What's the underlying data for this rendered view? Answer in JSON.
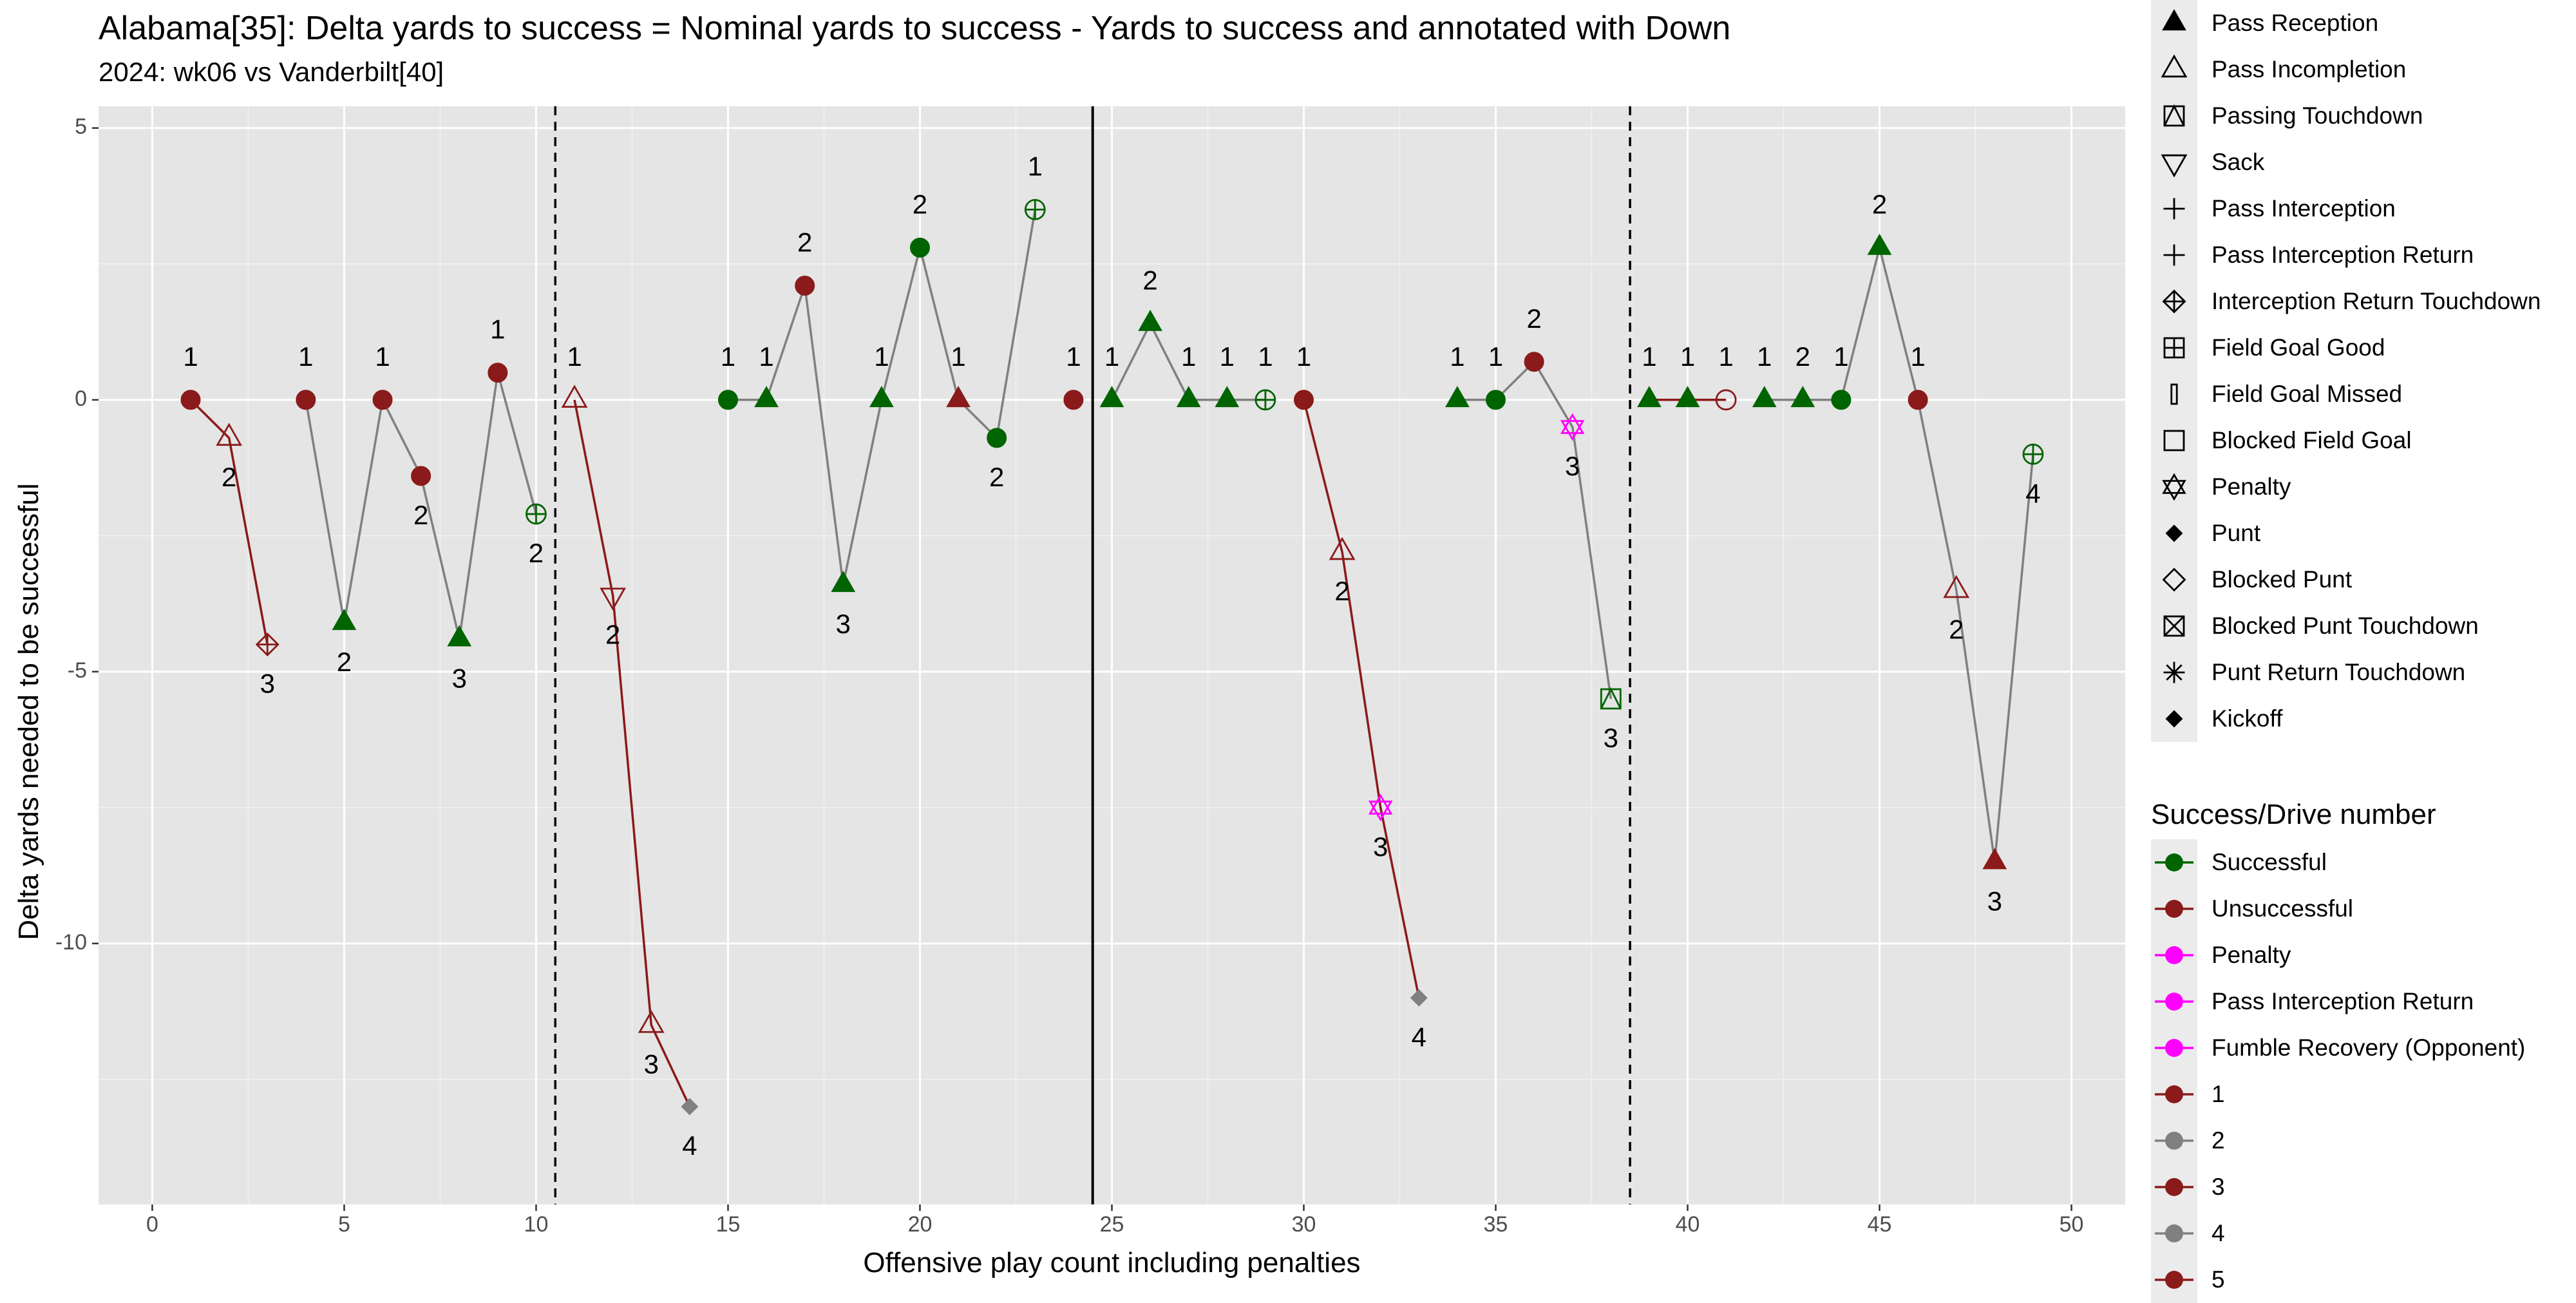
{
  "title": "Alabama[35]: Delta yards to success = Nominal yards to success - Yards to success and annotated with Down",
  "subtitle": "2024: wk06 vs Vanderbilt[40]",
  "legend_shape": {
    "items": [
      {
        "label": "Pass Reception",
        "shape": "filled-triangle"
      },
      {
        "label": "Pass Incompletion",
        "shape": "open-triangle"
      },
      {
        "label": "Passing Touchdown",
        "shape": "square-triangle"
      },
      {
        "label": "Sack",
        "shape": "down-triangle"
      },
      {
        "label": "Pass Interception",
        "shape": "plus"
      },
      {
        "label": "Pass Interception Return",
        "shape": "plus"
      },
      {
        "label": "Interception Return Touchdown",
        "shape": "diamond-plus"
      },
      {
        "label": "Field Goal Good",
        "shape": "square-plus"
      },
      {
        "label": "Field Goal Missed",
        "shape": "thin-rect"
      },
      {
        "label": "Blocked Field Goal",
        "shape": "open-square"
      },
      {
        "label": "Penalty",
        "shape": "star-of-david"
      },
      {
        "label": "Punt",
        "shape": "filled-diamond"
      },
      {
        "label": "Blocked Punt",
        "shape": "open-diamond"
      },
      {
        "label": "Blocked Punt Touchdown",
        "shape": "square-x"
      },
      {
        "label": "Punt Return Touchdown",
        "shape": "asterisk"
      },
      {
        "label": "Kickoff",
        "shape": "filled-diamond"
      }
    ]
  },
  "legend_color": {
    "title": "Success/Drive number",
    "items": [
      {
        "label": "Successful",
        "color": "#006400"
      },
      {
        "label": "Unsuccessful",
        "color": "#8b1a1a"
      },
      {
        "label": "Penalty",
        "color": "#ff00ff"
      },
      {
        "label": "Pass Interception Return",
        "color": "#ff00ff"
      },
      {
        "label": "Fumble Recovery (Opponent)",
        "color": "#ff00ff"
      },
      {
        "label": "1",
        "color": "#8b1a1a"
      },
      {
        "label": "2",
        "color": "#808080"
      },
      {
        "label": "3",
        "color": "#8b1a1a"
      },
      {
        "label": "4",
        "color": "#808080"
      },
      {
        "label": "5",
        "color": "#8b1a1a"
      }
    ]
  },
  "chart_data": {
    "type": "scatter",
    "title": "Alabama[35]: Delta yards to success = Nominal yards to success - Yards to success and annotated with Down",
    "subtitle": "2024: wk06 vs Vanderbilt[40]",
    "xlabel": "Offensive play count including penalties",
    "ylabel": "Delta yards needed to be successful",
    "xlim": [
      -1.4,
      51.4
    ],
    "ylim": [
      -14.8,
      5.4
    ],
    "x_ticks": [
      0,
      5,
      10,
      15,
      20,
      25,
      30,
      35,
      40,
      45,
      50
    ],
    "y_ticks": [
      5,
      0,
      -5,
      -10
    ],
    "y_tick_labels": [
      "5",
      "0",
      "-5",
      "-10"
    ],
    "grid": true,
    "legend_position": "right",
    "drive_breaks": [
      {
        "x": 10.5,
        "style": "dashed"
      },
      {
        "x": 24.5,
        "style": "solid"
      },
      {
        "x": 38.5,
        "style": "dashed"
      }
    ],
    "drives": [
      {
        "color": "#8b1a1a",
        "x": [
          1,
          2,
          3
        ]
      },
      {
        "color": "#808080",
        "x": [
          4,
          5,
          6,
          7,
          8,
          9,
          10
        ]
      },
      {
        "color": "#8b1a1a",
        "x": [
          11,
          12,
          13,
          14
        ]
      },
      {
        "color": "#808080",
        "x": [
          15,
          16,
          17,
          18,
          19,
          20,
          21,
          22,
          23
        ]
      },
      {
        "color": "#8b1a1a",
        "x": [
          24
        ]
      },
      {
        "color": "#808080",
        "x": [
          25,
          26,
          27,
          28,
          29
        ]
      },
      {
        "color": "#8b1a1a",
        "x": [
          30,
          31,
          32,
          33
        ]
      },
      {
        "color": "#808080",
        "x": [
          34,
          35,
          36,
          37,
          38
        ]
      },
      {
        "color": "#8b1a1a",
        "x": [
          39,
          40,
          41
        ]
      },
      {
        "color": "#808080",
        "x": [
          42,
          43,
          44,
          45,
          46,
          47,
          48,
          49
        ]
      }
    ],
    "points": [
      {
        "x": 1,
        "y": 0,
        "down": "1",
        "shape": "circle",
        "color": "#8b1a1a",
        "label_pos": "above"
      },
      {
        "x": 2,
        "y": -0.7,
        "down": "2",
        "shape": "open-triangle",
        "color": "#8b1a1a",
        "label_pos": "below"
      },
      {
        "x": 3,
        "y": -4.5,
        "down": "3",
        "shape": "diamond-plus",
        "color": "#8b1a1a",
        "label_pos": "below"
      },
      {
        "x": 4,
        "y": 0,
        "down": "1",
        "shape": "circle",
        "color": "#8b1a1a",
        "label_pos": "above"
      },
      {
        "x": 5,
        "y": -4.1,
        "down": "2",
        "shape": "filled-triangle",
        "color": "#006400",
        "label_pos": "below"
      },
      {
        "x": 6,
        "y": 0,
        "down": "1",
        "shape": "circle",
        "color": "#8b1a1a",
        "label_pos": "above"
      },
      {
        "x": 7,
        "y": -1.4,
        "down": "2",
        "shape": "circle",
        "color": "#8b1a1a",
        "label_pos": "below"
      },
      {
        "x": 8,
        "y": -4.4,
        "down": "3",
        "shape": "filled-triangle",
        "color": "#006400",
        "label_pos": "below"
      },
      {
        "x": 9,
        "y": 0.5,
        "down": "1",
        "shape": "circle",
        "color": "#8b1a1a",
        "label_pos": "above"
      },
      {
        "x": 10,
        "y": -2.1,
        "down": "2",
        "shape": "circle-plus",
        "color": "#006400",
        "label_pos": "below"
      },
      {
        "x": 11,
        "y": 0,
        "down": "1",
        "shape": "open-triangle",
        "color": "#8b1a1a",
        "label_pos": "above"
      },
      {
        "x": 12,
        "y": -3.6,
        "down": "2",
        "shape": "down-triangle",
        "color": "#8b1a1a",
        "label_pos": "below"
      },
      {
        "x": 13,
        "y": -11.5,
        "down": "3",
        "shape": "open-triangle",
        "color": "#8b1a1a",
        "label_pos": "below"
      },
      {
        "x": 14,
        "y": -13,
        "down": "4",
        "shape": "filled-diamond",
        "color": "#808080",
        "label_pos": "below"
      },
      {
        "x": 15,
        "y": 0,
        "down": "1",
        "shape": "circle",
        "color": "#006400",
        "label_pos": "above"
      },
      {
        "x": 16,
        "y": 0,
        "down": "1",
        "shape": "filled-triangle",
        "color": "#006400",
        "label_pos": "above"
      },
      {
        "x": 17,
        "y": 2.1,
        "down": "2",
        "shape": "circle",
        "color": "#8b1a1a",
        "label_pos": "above"
      },
      {
        "x": 18,
        "y": -3.4,
        "down": "3",
        "shape": "filled-triangle",
        "color": "#006400",
        "label_pos": "below"
      },
      {
        "x": 19,
        "y": 0,
        "down": "1",
        "shape": "filled-triangle",
        "color": "#006400",
        "label_pos": "above"
      },
      {
        "x": 20,
        "y": 2.8,
        "down": "2",
        "shape": "circle",
        "color": "#006400",
        "label_pos": "above"
      },
      {
        "x": 21,
        "y": 0,
        "down": "1",
        "shape": "filled-triangle",
        "color": "#8b1a1a",
        "label_pos": "above"
      },
      {
        "x": 22,
        "y": -0.7,
        "down": "2",
        "shape": "circle",
        "color": "#006400",
        "label_pos": "below"
      },
      {
        "x": 23,
        "y": 3.5,
        "down": "1",
        "shape": "circle-plus",
        "color": "#006400",
        "label_pos": "above"
      },
      {
        "x": 24,
        "y": 0,
        "down": "1",
        "shape": "circle",
        "color": "#8b1a1a",
        "label_pos": "above"
      },
      {
        "x": 25,
        "y": 0,
        "down": "1",
        "shape": "filled-triangle",
        "color": "#006400",
        "label_pos": "above"
      },
      {
        "x": 26,
        "y": 1.4,
        "down": "2",
        "shape": "filled-triangle",
        "color": "#006400",
        "label_pos": "above"
      },
      {
        "x": 27,
        "y": 0,
        "down": "1",
        "shape": "filled-triangle",
        "color": "#006400",
        "label_pos": "above"
      },
      {
        "x": 28,
        "y": 0,
        "down": "1",
        "shape": "filled-triangle",
        "color": "#006400",
        "label_pos": "above"
      },
      {
        "x": 29,
        "y": 0,
        "down": "1",
        "shape": "circle-plus",
        "color": "#006400",
        "label_pos": "above"
      },
      {
        "x": 30,
        "y": 0,
        "down": "1",
        "shape": "circle",
        "color": "#8b1a1a",
        "label_pos": "above"
      },
      {
        "x": 31,
        "y": -2.8,
        "down": "2",
        "shape": "open-triangle",
        "color": "#8b1a1a",
        "label_pos": "below"
      },
      {
        "x": 32,
        "y": -7.5,
        "down": "3",
        "shape": "star-of-david",
        "color": "#ff00ff",
        "label_pos": "below"
      },
      {
        "x": 33,
        "y": -11,
        "down": "4",
        "shape": "filled-diamond",
        "color": "#808080",
        "label_pos": "below"
      },
      {
        "x": 34,
        "y": 0,
        "down": "1",
        "shape": "filled-triangle",
        "color": "#006400",
        "label_pos": "above"
      },
      {
        "x": 35,
        "y": 0,
        "down": "1",
        "shape": "circle",
        "color": "#006400",
        "label_pos": "above"
      },
      {
        "x": 36,
        "y": 0.7,
        "down": "2",
        "shape": "circle",
        "color": "#8b1a1a",
        "label_pos": "above"
      },
      {
        "x": 37,
        "y": -0.5,
        "down": "3",
        "shape": "star-of-david",
        "color": "#ff00ff",
        "label_pos": "below"
      },
      {
        "x": 38,
        "y": -5.5,
        "down": "3",
        "shape": "square-triangle",
        "color": "#006400",
        "label_pos": "below"
      },
      {
        "x": 39,
        "y": 0,
        "down": "1",
        "shape": "filled-triangle",
        "color": "#006400",
        "label_pos": "above"
      },
      {
        "x": 40,
        "y": 0,
        "down": "1",
        "shape": "filled-triangle",
        "color": "#006400",
        "label_pos": "above"
      },
      {
        "x": 41,
        "y": 0,
        "down": "1",
        "shape": "open-circle",
        "color": "#8b1a1a",
        "label_pos": "above"
      },
      {
        "x": 42,
        "y": 0,
        "down": "1",
        "shape": "filled-triangle",
        "color": "#006400",
        "label_pos": "above"
      },
      {
        "x": 43,
        "y": 0,
        "down": "2",
        "shape": "filled-triangle",
        "color": "#006400",
        "label_pos": "above"
      },
      {
        "x": 44,
        "y": 0,
        "down": "1",
        "shape": "circle",
        "color": "#006400",
        "label_pos": "above"
      },
      {
        "x": 45,
        "y": 2.8,
        "down": "2",
        "shape": "filled-triangle",
        "color": "#006400",
        "label_pos": "above"
      },
      {
        "x": 46,
        "y": 0,
        "down": "1",
        "shape": "circle",
        "color": "#8b1a1a",
        "label_pos": "above"
      },
      {
        "x": 47,
        "y": -3.5,
        "down": "2",
        "shape": "open-triangle",
        "color": "#8b1a1a",
        "label_pos": "below"
      },
      {
        "x": 48,
        "y": -8.5,
        "down": "3",
        "shape": "filled-triangle",
        "color": "#8b1a1a",
        "label_pos": "below"
      },
      {
        "x": 49,
        "y": -1,
        "down": "4",
        "shape": "circle-plus",
        "color": "#006400",
        "label_pos": "below"
      }
    ]
  }
}
